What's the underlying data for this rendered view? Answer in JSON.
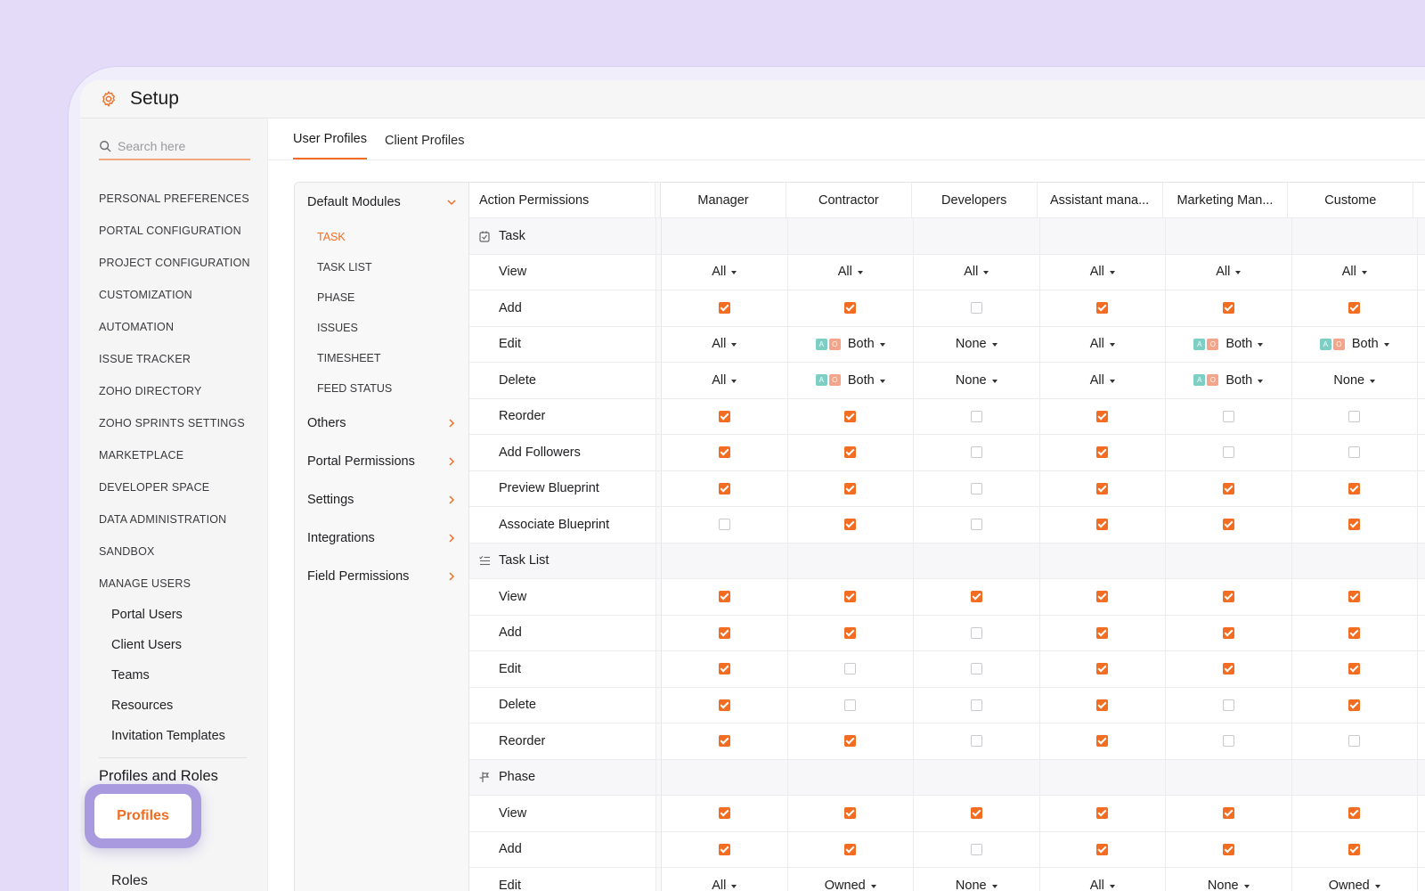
{
  "app": {
    "title": "Setup"
  },
  "search": {
    "placeholder": "Search here"
  },
  "sidebar": {
    "items": [
      "PERSONAL PREFERENCES",
      "PORTAL CONFIGURATION",
      "PROJECT CONFIGURATION",
      "CUSTOMIZATION",
      "AUTOMATION",
      "ISSUE TRACKER",
      "ZOHO DIRECTORY",
      "ZOHO SPRINTS SETTINGS",
      "MARKETPLACE",
      "DEVELOPER SPACE",
      "DATA ADMINISTRATION",
      "SANDBOX",
      "MANAGE USERS"
    ],
    "manage_users": [
      "Portal Users",
      "Client Users",
      "Teams",
      "Resources",
      "Invitation Templates"
    ],
    "profiles_heading": "Profiles and Roles",
    "profiles": "Profiles",
    "roles": "Roles"
  },
  "tabs": {
    "user": "User Profiles",
    "client": "Client Profiles"
  },
  "modules": {
    "default": "Default Modules",
    "subs": [
      "TASK",
      "TASK LIST",
      "PHASE",
      "ISSUES",
      "TIMESHEET",
      "FEED STATUS"
    ],
    "groups": [
      "Others",
      "Portal Permissions",
      "Settings",
      "Integrations",
      "Field Permissions"
    ]
  },
  "grid": {
    "header": "Action Permissions",
    "roles": [
      "Manager",
      "Contractor",
      "Developers",
      "Assistant mana...",
      "Marketing Man...",
      "Custome"
    ],
    "rows": [
      {
        "type": "section",
        "name": "Task",
        "icon": "task-icon"
      },
      {
        "name": "View",
        "cells": [
          "All",
          "All",
          "All",
          "All",
          "All",
          "All"
        ]
      },
      {
        "name": "Add",
        "cells": [
          true,
          true,
          false,
          true,
          true,
          true
        ]
      },
      {
        "name": "Edit",
        "cells": [
          "All",
          "Both",
          "None",
          "All",
          "Both",
          "Both"
        ]
      },
      {
        "name": "Delete",
        "cells": [
          "All",
          "Both",
          "None",
          "All",
          "Both",
          "None"
        ]
      },
      {
        "name": "Reorder",
        "cells": [
          true,
          true,
          false,
          true,
          false,
          false
        ]
      },
      {
        "name": "Add Followers",
        "cells": [
          true,
          true,
          false,
          true,
          false,
          false
        ]
      },
      {
        "name": "Preview Blueprint",
        "cells": [
          true,
          true,
          false,
          true,
          true,
          true
        ]
      },
      {
        "name": "Associate Blueprint",
        "cells": [
          false,
          true,
          false,
          true,
          true,
          true
        ]
      },
      {
        "type": "section",
        "name": "Task List",
        "icon": "task-list-icon"
      },
      {
        "name": "View",
        "cells": [
          true,
          true,
          true,
          true,
          true,
          true
        ]
      },
      {
        "name": "Add",
        "cells": [
          true,
          true,
          false,
          true,
          true,
          true
        ]
      },
      {
        "name": "Edit",
        "cells": [
          true,
          false,
          false,
          true,
          true,
          true
        ]
      },
      {
        "name": "Delete",
        "cells": [
          true,
          false,
          false,
          true,
          false,
          true
        ]
      },
      {
        "name": "Reorder",
        "cells": [
          true,
          true,
          false,
          true,
          false,
          false
        ]
      },
      {
        "type": "section",
        "name": "Phase",
        "icon": "phase-icon"
      },
      {
        "name": "View",
        "cells": [
          true,
          true,
          true,
          true,
          true,
          true
        ]
      },
      {
        "name": "Add",
        "cells": [
          true,
          true,
          false,
          true,
          true,
          true
        ]
      },
      {
        "name": "Edit",
        "cells": [
          "All",
          "Owned",
          "None",
          "All",
          "None",
          "Owned"
        ]
      }
    ]
  },
  "colors": {
    "accent": "#f26c21",
    "background": "#e3dbf8",
    "highlight": "#a99ae0"
  }
}
